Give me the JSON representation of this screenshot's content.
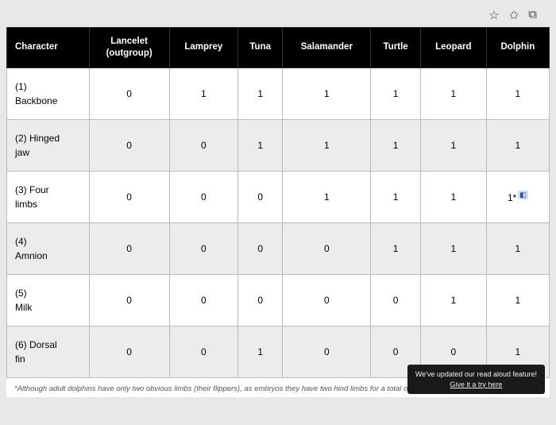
{
  "browser": {
    "icons": [
      "star-icon",
      "bookmark-star-icon",
      "ext-cube-icon"
    ]
  },
  "table": {
    "columns": [
      "Character",
      "Lancelet (outgroup)",
      "Lamprey",
      "Tuna",
      "Salamander",
      "Turtle",
      "Leopard",
      "Dolphin"
    ],
    "rows": [
      {
        "label": "(1) Backbone",
        "cells": [
          "0",
          "1",
          "1",
          "1",
          "1",
          "1",
          "1"
        ],
        "shaded": false
      },
      {
        "label": "(2) Hinged jaw",
        "cells": [
          "0",
          "0",
          "1",
          "1",
          "1",
          "1",
          "1"
        ],
        "shaded": true
      },
      {
        "label": "(3) Four limbs",
        "cells": [
          "0",
          "0",
          "0",
          "1",
          "1",
          "1",
          "1*"
        ],
        "shaded": false,
        "annot_last": true
      },
      {
        "label": "(4) Amnion",
        "cells": [
          "0",
          "0",
          "0",
          "0",
          "1",
          "1",
          "1"
        ],
        "shaded": true
      },
      {
        "label": "(5) Milk",
        "cells": [
          "0",
          "0",
          "0",
          "0",
          "0",
          "1",
          "1"
        ],
        "shaded": false
      },
      {
        "label": "(6) Dorsal fin",
        "cells": [
          "0",
          "0",
          "1",
          "0",
          "0",
          "0",
          "1"
        ],
        "shaded": true
      }
    ]
  },
  "footnote": "*Although adult dolphins have only two obvious limbs (their flippers), as embryos they have two hind limbs for a total of four limbs.",
  "toast": {
    "line1": "We've updated our read aloud feature!",
    "line2": "Give it a try here"
  }
}
